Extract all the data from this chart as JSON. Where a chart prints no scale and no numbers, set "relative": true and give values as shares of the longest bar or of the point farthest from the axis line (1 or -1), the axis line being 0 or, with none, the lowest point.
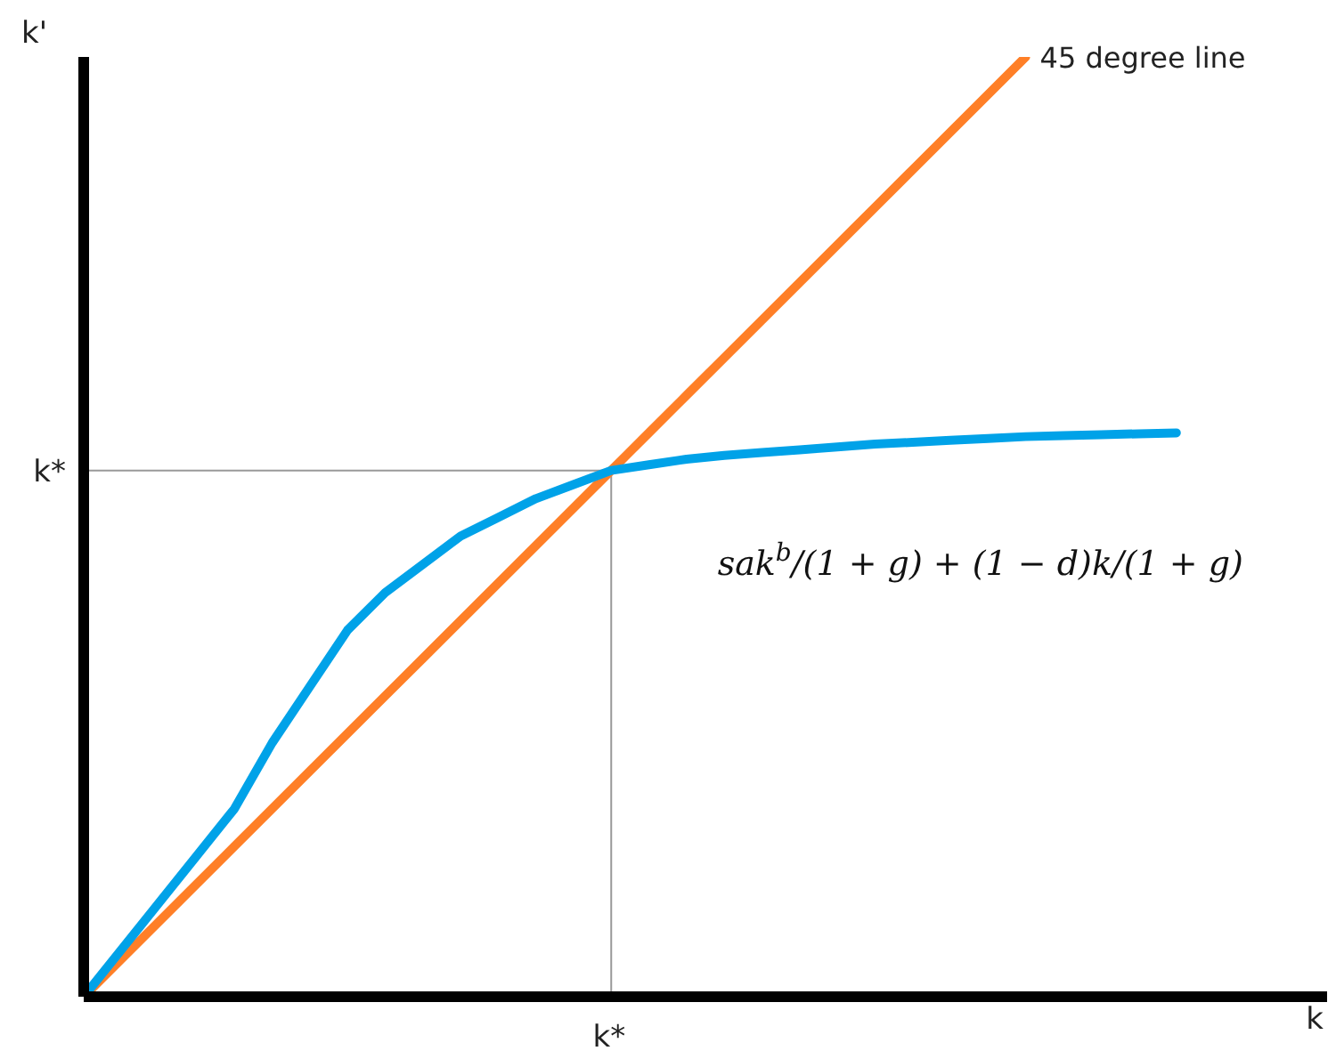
{
  "chart_data": {
    "type": "line",
    "relative": true,
    "xlabel": "k",
    "ylabel": "k'",
    "categories": [
      null,
      null,
      null,
      null,
      null,
      null,
      null,
      null,
      null,
      null,
      null,
      null,
      null,
      null,
      null,
      null,
      null,
      null,
      null,
      null,
      null,
      null,
      null,
      null,
      null,
      null,
      null,
      null,
      null,
      null,
      null,
      null,
      null,
      null
    ],
    "series": [
      {
        "name": "45 degree line",
        "color": "#ff7f27",
        "values": [
          0,
          0.04,
          0.08,
          0.12,
          0.16,
          0.2,
          0.24,
          0.28,
          0.32,
          0.36,
          0.4,
          0.44,
          0.48,
          0.52,
          0.56,
          0.6,
          0.64,
          0.68,
          0.72,
          0.76,
          0.8,
          0.84,
          0.88,
          0.92,
          0.96,
          1,
          null,
          null,
          null,
          null,
          null,
          null,
          null,
          null
        ]
      },
      {
        "name": "sak$^{b}$/(1 + g) + (1 − d)k/(1 + g)",
        "color": "#00a2e8",
        "values": [
          0,
          0.05,
          0.1,
          0.15,
          0.2,
          0.27,
          0.33,
          0.39,
          0.43,
          0.46,
          0.49,
          0.51,
          0.53,
          0.545,
          0.56,
          0.566,
          0.572,
          0.576,
          0.579,
          0.582,
          0.585,
          0.588,
          0.59,
          0.592,
          0.594,
          0.596,
          0.597,
          0.598,
          0.599,
          0.6,
          null,
          null,
          null,
          null
        ]
      }
    ],
    "ref_lines": [
      {
        "axis": "y",
        "value": 0.56,
        "label": "k*",
        "color": "#999999"
      }
    ],
    "annotations": [
      "k*"
    ],
    "grid": false,
    "legend": false,
    "marker": "none",
    "line_style": "solid"
  }
}
